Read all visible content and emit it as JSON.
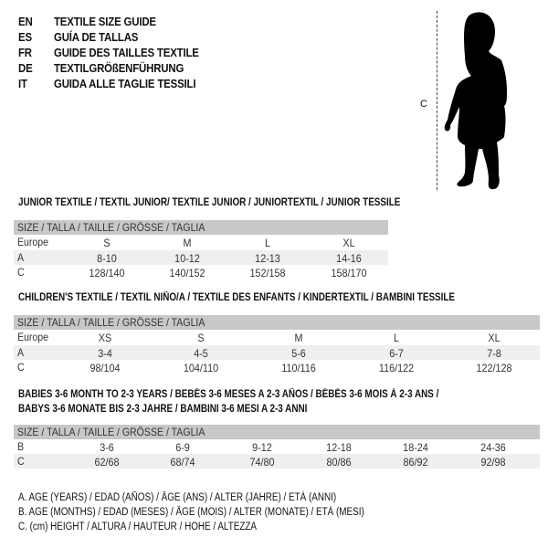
{
  "header": [
    {
      "code": "EN",
      "text": "TEXTILE SIZE GUIDE"
    },
    {
      "code": "ES",
      "text": "GUÍA DE TALLAS"
    },
    {
      "code": "FR",
      "text": "GUIDE DES TAILLES TEXTILE"
    },
    {
      "code": "DE",
      "text": "TEXTILGRÖßENFÜHRUNG"
    },
    {
      "code": "IT",
      "text": "GUIDA ALLE TAGLIE TESSILI"
    }
  ],
  "figure": {
    "measure_label": "C",
    "icon": "child-silhouette-icon"
  },
  "size_header": "SIZE / TALLA / TAILLE / GRÖSSE / TAGLIA",
  "sections": [
    {
      "title": [
        "JUNIOR TEXTILE / TEXTIL JUNIOR/ TEXTILE JUNIOR / JUNIORTEXTIL / JUNIOR TESSILE"
      ],
      "rows": [
        {
          "label": "Europe",
          "values": [
            "S",
            "M",
            "L",
            "XL"
          ]
        },
        {
          "label": "A",
          "values": [
            "8-10",
            "10-12",
            "12-13",
            "14-16"
          ]
        },
        {
          "label": "C",
          "values": [
            "128/140",
            "140/152",
            "152/158",
            "158/170"
          ]
        }
      ]
    },
    {
      "title": [
        "CHILDREN'S TEXTILE / TEXTIL NIÑO/A / TEXTILE DES ENFANTS / KINDERTEXTIL / BAMBINI TESSILE"
      ],
      "rows": [
        {
          "label": "Europe",
          "values": [
            "XS",
            "S",
            "M",
            "L",
            "XL"
          ]
        },
        {
          "label": "A",
          "values": [
            "3-4",
            "4-5",
            "5-6",
            "6-7",
            "7-8"
          ]
        },
        {
          "label": "C",
          "values": [
            "98/104",
            "104/110",
            "110/116",
            "116/122",
            "122/128"
          ]
        }
      ]
    },
    {
      "title": [
        "BABIES 3-6 MONTH TO 2-3 YEARS / BEBÉS 3-6 MESES A 2-3 AÑOS / BÉBÉS 3-6 MOIS À 2-3 ANS /",
        "BABYS 3-6 MONATE BIS 2-3 JAHRE / BAMBINI 3-6 MESI A 2-3 ANNI"
      ],
      "rows": [
        {
          "label": "B",
          "values": [
            "3-6",
            "6-9",
            "9-12",
            "12-18",
            "18-24",
            "24-36"
          ]
        },
        {
          "label": "C",
          "values": [
            "62/68",
            "68/74",
            "74/80",
            "80/86",
            "86/92",
            "92/98"
          ]
        }
      ]
    }
  ],
  "legend": [
    "A. AGE (YEARS) / EDAD (AÑOS) / ÂGE (ANS) / ALTER (JAHRE) / ETÀ (ANNI)",
    "B. AGE (MONTHS) / EDAD (MESES) / ÂGE (MOIS) / ALTER (MONATE) / ETÀ (MESI)",
    "C. (cm) HEIGHT / ALTURA / HAUTEUR / HÖHE / ALTEZZA"
  ]
}
